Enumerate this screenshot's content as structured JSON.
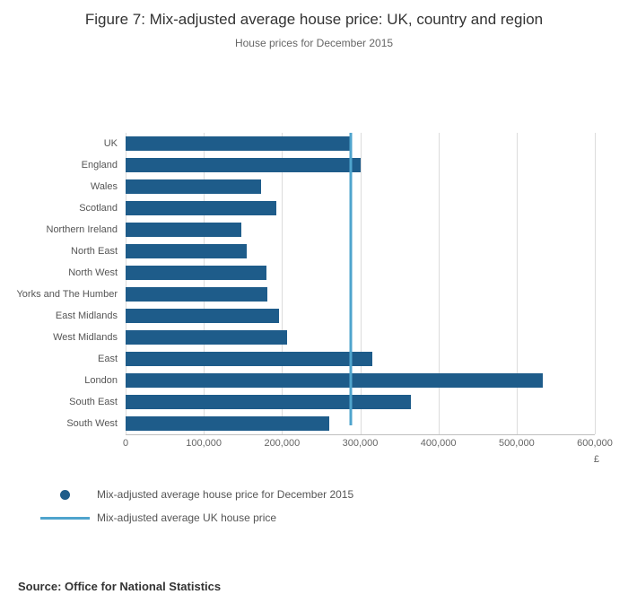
{
  "title": "Figure 7: Mix-adjusted average house price: UK, country and region",
  "subtitle": "House prices for December 2015",
  "source": "Source: Office for National Statistics",
  "legend": [
    {
      "label": "Mix-adjusted average house price for December 2015",
      "marker": "dot"
    },
    {
      "label": "Mix-adjusted average UK house price",
      "marker": "line"
    }
  ],
  "chart_data": {
    "type": "bar",
    "orientation": "horizontal",
    "title": "Figure 7: Mix-adjusted average house price: UK, country and region",
    "subtitle": "House prices for December 2015",
    "categories": [
      "UK",
      "England",
      "Wales",
      "Scotland",
      "Northern Ireland",
      "North East",
      "North West",
      "Yorks and The Humber",
      "East Midlands",
      "West Midlands",
      "East",
      "London",
      "South East",
      "South West"
    ],
    "values": [
      288000,
      301000,
      173000,
      193000,
      148000,
      155000,
      180000,
      181000,
      196000,
      206000,
      315000,
      534000,
      365000,
      260000
    ],
    "xlabel": "£",
    "xlim": [
      0,
      600000
    ],
    "xticks": [
      0,
      100000,
      200000,
      300000,
      400000,
      500000,
      600000
    ],
    "xtick_labels": [
      "0",
      "100,000",
      "200,000",
      "300,000",
      "400,000",
      "500,000",
      "600,000"
    ],
    "uk_average_line": 288000,
    "bar_color": "#1e5c8a",
    "line_color": "#4fa4cd",
    "grid": true,
    "legend_position": "bottom-left"
  }
}
